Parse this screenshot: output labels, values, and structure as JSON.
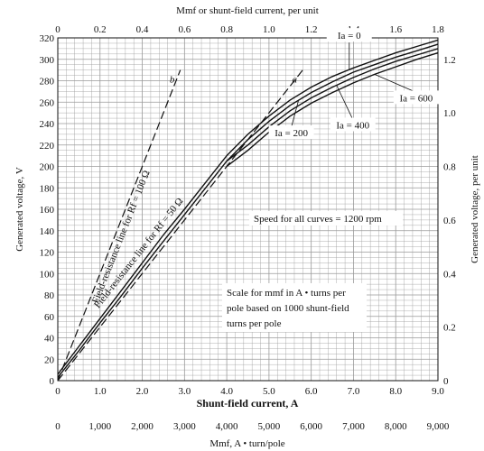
{
  "chart_data": {
    "type": "line",
    "title": "",
    "xlabel": "Shunt-field current, A",
    "ylabel": "Generated voltage, V",
    "x2label": "Mmf or shunt-field current, per unit",
    "y2label": "Generated voltage, per unit",
    "x3label": "Mmf, A • turn/pole",
    "xlim": [
      0,
      9.0
    ],
    "ylim": [
      0,
      320
    ],
    "x_ticks": [
      0,
      1,
      2,
      3,
      4,
      5,
      6,
      7,
      8,
      9
    ],
    "x_tick_labels": [
      "0",
      "1.0",
      "2.0",
      "3.0",
      "4.0",
      "5.0",
      "6.0",
      "7.0",
      "8.0",
      "9.0"
    ],
    "y_ticks": [
      0,
      20,
      40,
      60,
      80,
      100,
      120,
      140,
      160,
      180,
      200,
      220,
      240,
      260,
      280,
      300,
      320
    ],
    "y_tick_labels": [
      "0",
      "20",
      "40",
      "60",
      "80",
      "100",
      "120",
      "140",
      "160",
      "180",
      "200",
      "220",
      "240",
      "260",
      "280",
      "300",
      "320"
    ],
    "x2_ticks": [
      0,
      0.2,
      0.4,
      0.6,
      0.8,
      1.0,
      1.2,
      1.4,
      1.6,
      1.8
    ],
    "x2_tick_labels": [
      "0",
      "0.2",
      "0.4",
      "0.6",
      "0.8",
      "1.0",
      "1.2",
      "1.4",
      "1.6",
      "1.8"
    ],
    "y2_ticks": [
      0,
      0.2,
      0.4,
      0.6,
      0.8,
      1.0,
      1.2
    ],
    "y2_tick_labels": [
      "0",
      "0.2",
      "0.4",
      "0.6",
      "0.8",
      "1.0",
      "1.2"
    ],
    "x3_tick_labels": [
      "0",
      "1,000",
      "2,000",
      "3,000",
      "4,000",
      "5,000",
      "6,000",
      "7,000",
      "8,000",
      "9,000"
    ],
    "grid": true,
    "series": [
      {
        "name": "Ia = 0",
        "style": "solid",
        "x": [
          0,
          0.5,
          1.0,
          1.5,
          2.0,
          2.5,
          3.0,
          3.5,
          4.0,
          4.5,
          5.0,
          5.5,
          6.0,
          6.5,
          7.0,
          7.5,
          8.0,
          8.5,
          9.0
        ],
        "y": [
          6,
          32,
          58,
          84,
          110,
          136,
          160,
          185,
          210,
          230,
          247,
          262,
          274,
          284,
          292,
          299,
          306,
          312,
          318
        ]
      },
      {
        "name": "Ia = 200",
        "style": "solid",
        "x": [
          0,
          0.5,
          1.0,
          1.5,
          2.0,
          2.5,
          3.0,
          3.5,
          4.0,
          4.5,
          5.0,
          5.5,
          6.0,
          6.5,
          7.0,
          7.5,
          8.0,
          8.5,
          9.0
        ],
        "y": [
          3,
          28,
          54,
          79,
          105,
          130,
          155,
          180,
          205,
          225,
          242,
          257,
          269,
          279,
          288,
          295,
          302,
          308,
          314
        ]
      },
      {
        "name": "Ia = 400",
        "style": "solid",
        "x": [
          4.0,
          4.5,
          5.0,
          5.5,
          6.0,
          6.5,
          7.0,
          7.5,
          8.0,
          8.5,
          9.0
        ],
        "y": [
          205,
          220,
          237,
          252,
          264,
          274,
          283,
          291,
          298,
          304,
          310
        ]
      },
      {
        "name": "Ia = 600",
        "style": "solid",
        "x": [
          4.0,
          4.5,
          5.0,
          5.5,
          6.0,
          6.5,
          7.0,
          7.5,
          8.0,
          8.5,
          9.0
        ],
        "y": [
          200,
          215,
          232,
          247,
          259,
          269,
          278,
          286,
          293,
          300,
          306
        ]
      },
      {
        "name": "Field-resistance line for Rf = 100 Ω",
        "style": "dashed",
        "x": [
          0,
          2.9
        ],
        "y": [
          0,
          290
        ]
      },
      {
        "name": "Field-resistance line for Rf = 50 Ω",
        "style": "dashed",
        "x": [
          0,
          5.8
        ],
        "y": [
          0,
          290
        ]
      }
    ],
    "curve_labels": [
      {
        "text": "Ia = 0",
        "series": 0
      },
      {
        "text": "Ia = 200",
        "series": 1
      },
      {
        "text": "Ia = 400",
        "series": 2
      },
      {
        "text": "Ia = 600",
        "series": 3
      }
    ],
    "line_markers": [
      {
        "text": "b",
        "series": 4
      },
      {
        "text": "a",
        "series": 5
      }
    ],
    "line_labels": [
      {
        "text": "Field-resistance line for Rf = 100 Ω",
        "series": 4
      },
      {
        "text": "Field-resistance line for Rf = 50 Ω",
        "series": 5
      }
    ],
    "annotations": [
      "Speed for all curves = 1200 rpm",
      "Scale for mmf in A • turns per",
      "pole based on 1000 shunt-field",
      "turns per pole"
    ]
  }
}
